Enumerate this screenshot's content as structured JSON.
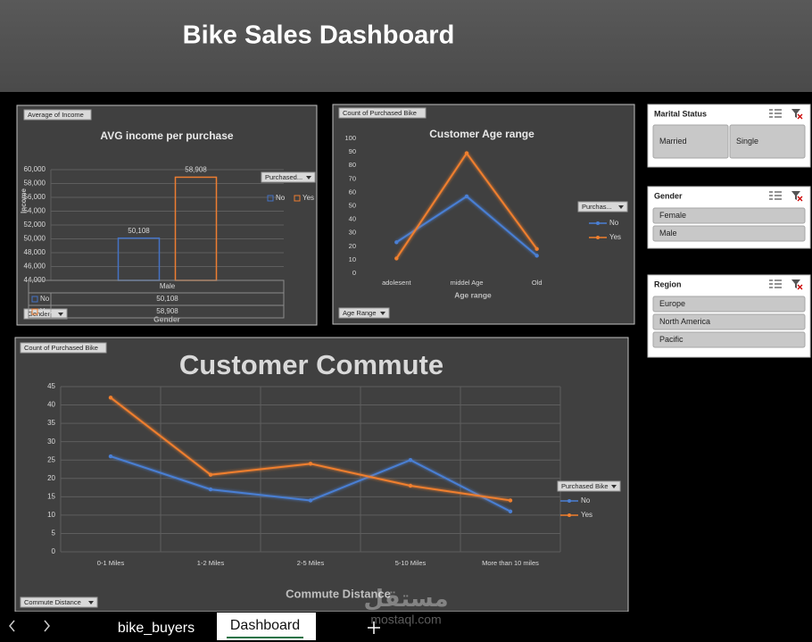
{
  "header": {
    "title": "Bike Sales Dashboard"
  },
  "chart_data": [
    {
      "type": "bar",
      "title": "AVG income per purchase",
      "value_field": "Average of Income",
      "y_label": "Income",
      "x_label": "Gender",
      "legend_title": "Purchased...",
      "filter_field": "Gender",
      "categories": [
        "Male"
      ],
      "series": [
        {
          "name": "No",
          "color": "#4472c4",
          "values": [
            50108
          ],
          "value_labels": [
            "50,108"
          ]
        },
        {
          "name": "Yes",
          "color": "#ed7d31",
          "values": [
            58908
          ],
          "value_labels": [
            "58,908"
          ]
        }
      ],
      "ylim": [
        44000,
        60000
      ],
      "yticks": [
        {
          "value": 44000,
          "label": "44,000"
        },
        {
          "value": 46000,
          "label": "46,000"
        },
        {
          "value": 48000,
          "label": "48,000"
        },
        {
          "value": 50000,
          "label": "50,000"
        },
        {
          "value": 52000,
          "label": "52,000"
        },
        {
          "value": 54000,
          "label": "54,000"
        },
        {
          "value": 56000,
          "label": "56,000"
        },
        {
          "value": 58000,
          "label": "58,000"
        },
        {
          "value": 60000,
          "label": "60,000"
        }
      ],
      "grid": true,
      "data_table": true
    },
    {
      "type": "line",
      "title": "Customer Age range",
      "value_field": "Count of Purchased Bike",
      "x_label": "Age range",
      "legend_title": "Purchas...",
      "filter_field": "Age Range",
      "categories": [
        "adolesent",
        "middel Age",
        "Old"
      ],
      "series": [
        {
          "name": "No",
          "color": "#4a7fd4",
          "values": [
            23,
            57,
            13
          ]
        },
        {
          "name": "Yes",
          "color": "#f07f2e",
          "values": [
            11,
            89,
            18
          ]
        }
      ],
      "ylim": [
        0,
        100
      ],
      "yticks": [
        0,
        10,
        20,
        30,
        40,
        50,
        60,
        70,
        80,
        90,
        100
      ],
      "grid": false
    },
    {
      "type": "line",
      "title": "Customer Commute",
      "value_field": "Count of Purchased Bike",
      "x_label": "Commute Distance",
      "legend_title": "Purchased Bike",
      "filter_field": "Commute Distance",
      "categories": [
        "0-1 Miles",
        "1-2 Miles",
        "2-5 Miles",
        "5-10 Miles",
        "More than 10 miles"
      ],
      "series": [
        {
          "name": "No",
          "color": "#4a7fd4",
          "values": [
            26,
            17,
            14,
            25,
            11
          ]
        },
        {
          "name": "Yes",
          "color": "#f07f2e",
          "values": [
            42,
            21,
            24,
            18,
            14
          ]
        }
      ],
      "ylim": [
        0,
        45
      ],
      "yticks": [
        0,
        5,
        10,
        15,
        20,
        25,
        30,
        35,
        40,
        45
      ],
      "grid": true
    }
  ],
  "slicers": [
    {
      "title": "Marital Status",
      "items": [
        "Married",
        "Single"
      ]
    },
    {
      "title": "Gender",
      "items": [
        "Female",
        "Male"
      ]
    },
    {
      "title": "Region",
      "items": [
        "Europe",
        "North America",
        "Pacific"
      ]
    }
  ],
  "tabs": [
    "bike_buyers",
    "Dashboard"
  ],
  "watermark": {
    "arabic": "مستقل",
    "latin": "mostaql.com"
  }
}
